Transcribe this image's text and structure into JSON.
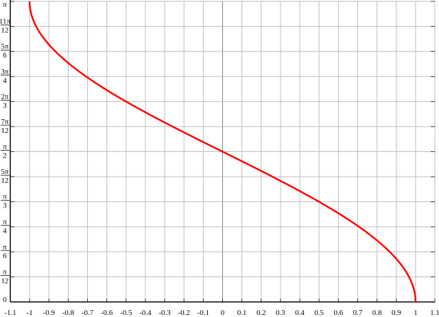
{
  "chart_data": {
    "type": "line",
    "title": "",
    "xlabel": "",
    "ylabel": "",
    "xlim": [
      -1.1,
      1.1
    ],
    "ylim": [
      0,
      3.14159265
    ],
    "grid": true,
    "x_ticks": [
      "-1.1",
      "-1",
      "-0.9",
      "-0.8",
      "-0.7",
      "-0.6",
      "-0.5",
      "-0.4",
      "-0.3",
      "-0.2",
      "-0.1",
      "0",
      "0.1",
      "0.2",
      "0.3",
      "0.4",
      "0.5",
      "0.6",
      "0.7",
      "0.8",
      "0.9",
      "1",
      "1.1"
    ],
    "y_ticks": [
      {
        "num": "0",
        "den": ""
      },
      {
        "num": "π",
        "den": "12"
      },
      {
        "num": "π",
        "den": "6"
      },
      {
        "num": "π",
        "den": "4"
      },
      {
        "num": "π",
        "den": "3"
      },
      {
        "num": "5π",
        "den": "12"
      },
      {
        "num": "π",
        "den": "2"
      },
      {
        "num": "7π",
        "den": "12"
      },
      {
        "num": "2π",
        "den": "3"
      },
      {
        "num": "3π",
        "den": "4"
      },
      {
        "num": "5π",
        "den": "6"
      },
      {
        "num": "11π",
        "den": "12"
      },
      {
        "num": "π",
        "den": ""
      }
    ],
    "series": [
      {
        "function": "arccos(x)",
        "domain": [
          -1,
          1
        ],
        "color": "#ff0000"
      }
    ]
  }
}
